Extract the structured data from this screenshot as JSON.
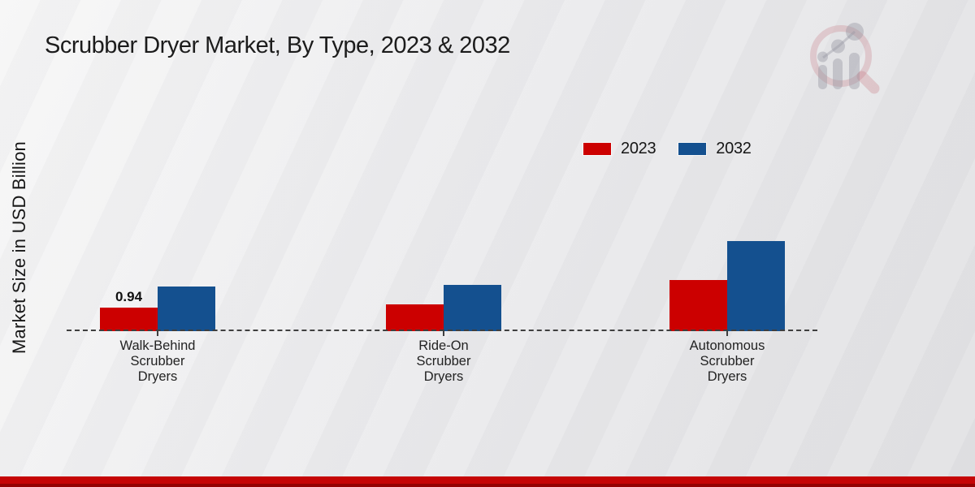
{
  "page": {
    "title": "Scrubber Dryer Market, By Type, 2023 & 2032",
    "footer_accent_color": "#c50505",
    "background_color": "#ececee"
  },
  "branding": {
    "logo_icon": "magnifier-bar-chart-watermark"
  },
  "chart_data": {
    "type": "bar",
    "title": "Scrubber Dryer Market, By Type, 2023 & 2032",
    "xlabel": "",
    "ylabel": "Market Size in USD Billion",
    "unit": "USD Billion",
    "categories": [
      "Walk-Behind\nScrubber\nDryers",
      "Ride-On\nScrubber\nDryers",
      "Autonomous\nScrubber\nDryers"
    ],
    "series": [
      {
        "name": "2023",
        "color": "#cc0000",
        "values": [
          0.94,
          1.05,
          2.01
        ]
      },
      {
        "name": "2032",
        "color": "#14508f",
        "values": [
          1.76,
          1.81,
          3.55
        ]
      }
    ],
    "annotations": [
      {
        "series_index": 0,
        "category_index": 0,
        "text": "0.94"
      }
    ],
    "legend_position": "top-right",
    "grid": false,
    "baseline_style": "dashed",
    "baseline_color": "#3f3f3f",
    "ylim": [
      0,
      4
    ]
  }
}
